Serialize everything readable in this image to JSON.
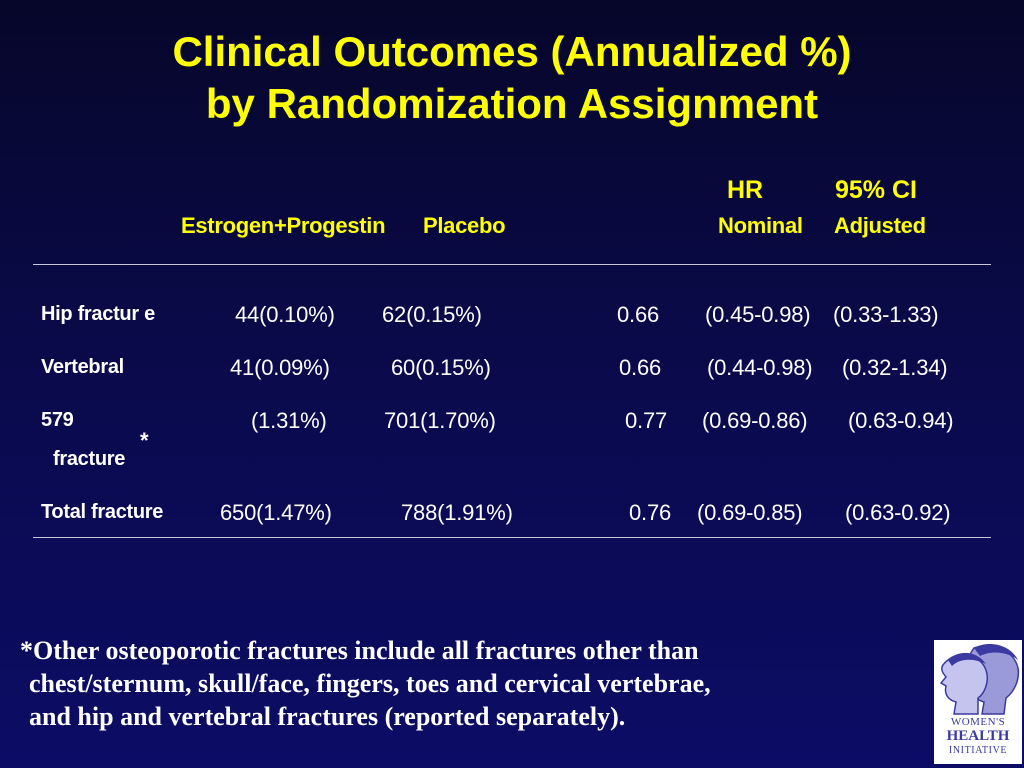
{
  "title": {
    "line1": "Clinical Outcomes (Annualized %)",
    "line2": "by Randomization Assignment"
  },
  "header": {
    "hr": "HR",
    "ci": "95% CI",
    "estrogen_progestin": "Estrogen+Progestin",
    "placebo": "Placebo",
    "nominal": "Nominal",
    "adjusted": "Adjusted"
  },
  "rows": [
    {
      "label": "Hip fractur e",
      "ep": "44(0.10%)",
      "placebo": "62(0.15%)",
      "hr": "0.66",
      "nominal": "(0.45-0.98)",
      "adjusted": "(0.33-1.33)"
    },
    {
      "label": "Vertebral",
      "ep": "41(0.09%)",
      "placebo": "60(0.15%)",
      "hr": "0.66",
      "nominal": "(0.44-0.98)",
      "adjusted": "(0.32-1.34)"
    },
    {
      "label": "579",
      "label2": "fracture",
      "star": "*",
      "ep": "(1.31%)",
      "placebo": "701(1.70%)",
      "hr": "0.77",
      "nominal": "(0.69-0.86)",
      "adjusted": "(0.63-0.94)"
    },
    {
      "label": "Total fracture",
      "ep": "650(1.47%)",
      "placebo": "788(1.91%)",
      "hr": "0.76",
      "nominal": "(0.69-0.85)",
      "adjusted": "(0.63-0.92)"
    }
  ],
  "footnote": {
    "line1": "*Other osteoporotic fractures include all fractures other than",
    "line2": "chest/sternum, skull/face, fingers, toes and cervical vertebrae,",
    "line3": "and hip and vertebral fractures (reported separately)."
  },
  "logo": {
    "line1": "WOMEN'S",
    "line2": "HEALTH",
    "line3": "INITIATIVE",
    "color": "#3a3aa0"
  }
}
